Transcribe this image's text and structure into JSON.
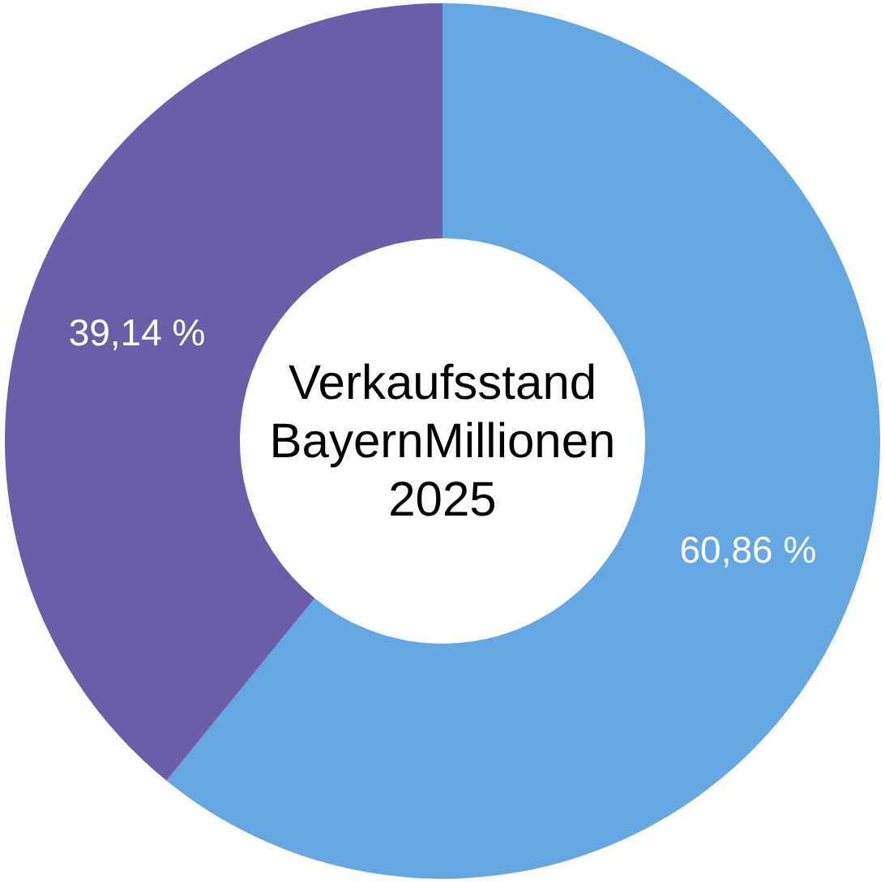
{
  "chart_data": {
    "type": "donut",
    "title": "Verkaufsstand BayernMillionen 2025",
    "categories": [
      null,
      null
    ],
    "values": [
      60.86,
      39.14
    ],
    "colors": [
      "#64a7e3",
      "#6b5ea8"
    ],
    "value_labels": [
      "60,86 %",
      "39,14 %"
    ]
  }
}
